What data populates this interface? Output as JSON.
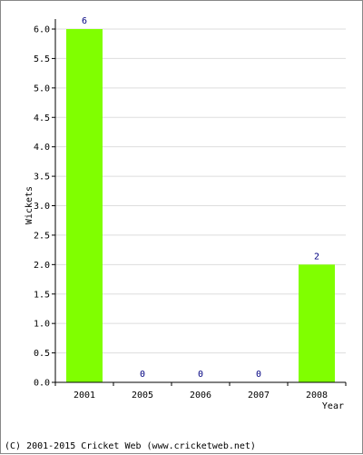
{
  "chart_data": {
    "type": "bar",
    "categories": [
      "2001",
      "2005",
      "2006",
      "2007",
      "2008"
    ],
    "values": [
      6,
      0,
      0,
      0,
      2
    ],
    "data_labels": [
      "6",
      "0",
      "0",
      "0",
      "2"
    ],
    "title": "",
    "xlabel": "Year",
    "ylabel": "Wickets",
    "ylim": [
      0,
      6
    ],
    "yticks": [
      "0.0",
      "0.5",
      "1.0",
      "1.5",
      "2.0",
      "2.5",
      "3.0",
      "3.5",
      "4.0",
      "4.5",
      "5.0",
      "5.5",
      "6.0"
    ],
    "grid": true,
    "bar_color": "#80ff00",
    "data_label_color": "#000080"
  },
  "footer": {
    "copyright": "(C) 2001-2015 Cricket Web (www.cricketweb.net)"
  }
}
